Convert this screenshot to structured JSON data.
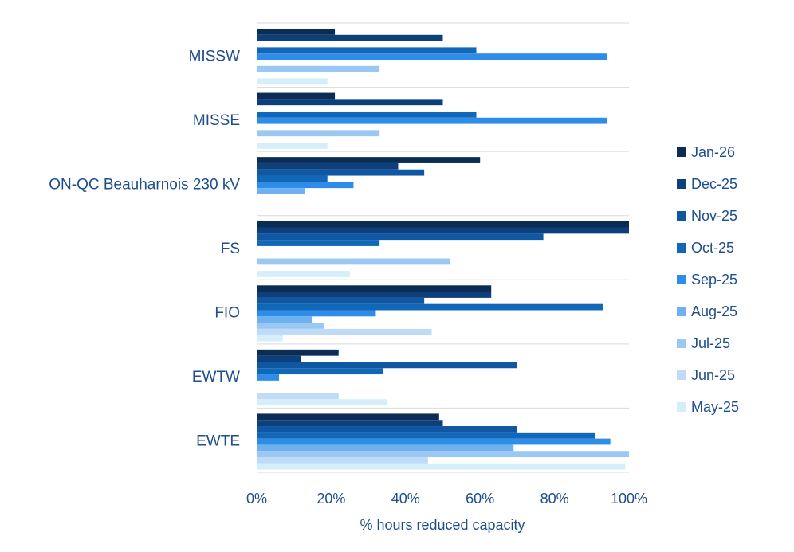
{
  "chart_data": {
    "type": "bar",
    "orientation": "horizontal",
    "xlabel": "% hours reduced capacity",
    "ylabel": "",
    "xlim": [
      0,
      100
    ],
    "x_ticks": [
      "0%",
      "20%",
      "40%",
      "60%",
      "80%",
      "100%"
    ],
    "grid": "horizontal category separators",
    "legend_position": "right",
    "categories": [
      "MISSW",
      "MISSE",
      "ON-QC Beauharnois 230 kV",
      "FS",
      "FIO",
      "EWTW",
      "EWTE"
    ],
    "series": [
      {
        "name": "Jan-26",
        "color": "#0b2d55",
        "values": [
          21,
          21,
          60,
          100,
          63,
          22,
          49
        ]
      },
      {
        "name": "Dec-25",
        "color": "#0d3f7a",
        "values": [
          50,
          50,
          38,
          100,
          63,
          12,
          50
        ]
      },
      {
        "name": "Nov-25",
        "color": "#0f56a3",
        "values": [
          0,
          0,
          45,
          77,
          45,
          70,
          70
        ]
      },
      {
        "name": "Oct-25",
        "color": "#1168b8",
        "values": [
          59,
          59,
          19,
          33,
          93,
          34,
          91
        ]
      },
      {
        "name": "Sep-25",
        "color": "#2e8de8",
        "values": [
          94,
          94,
          26,
          0,
          32,
          6,
          95
        ]
      },
      {
        "name": "Aug-25",
        "color": "#6fb0f0",
        "values": [
          0,
          0,
          13,
          0,
          15,
          0,
          69
        ]
      },
      {
        "name": "Jul-25",
        "color": "#9ac8f5",
        "values": [
          33,
          33,
          0,
          52,
          18,
          0,
          100
        ]
      },
      {
        "name": "Jun-25",
        "color": "#bfdbf7",
        "values": [
          0,
          0,
          0,
          0,
          47,
          22,
          46
        ]
      },
      {
        "name": "May-25",
        "color": "#d6eef9",
        "values": [
          19,
          19,
          0,
          25,
          7,
          35,
          99
        ]
      }
    ]
  }
}
